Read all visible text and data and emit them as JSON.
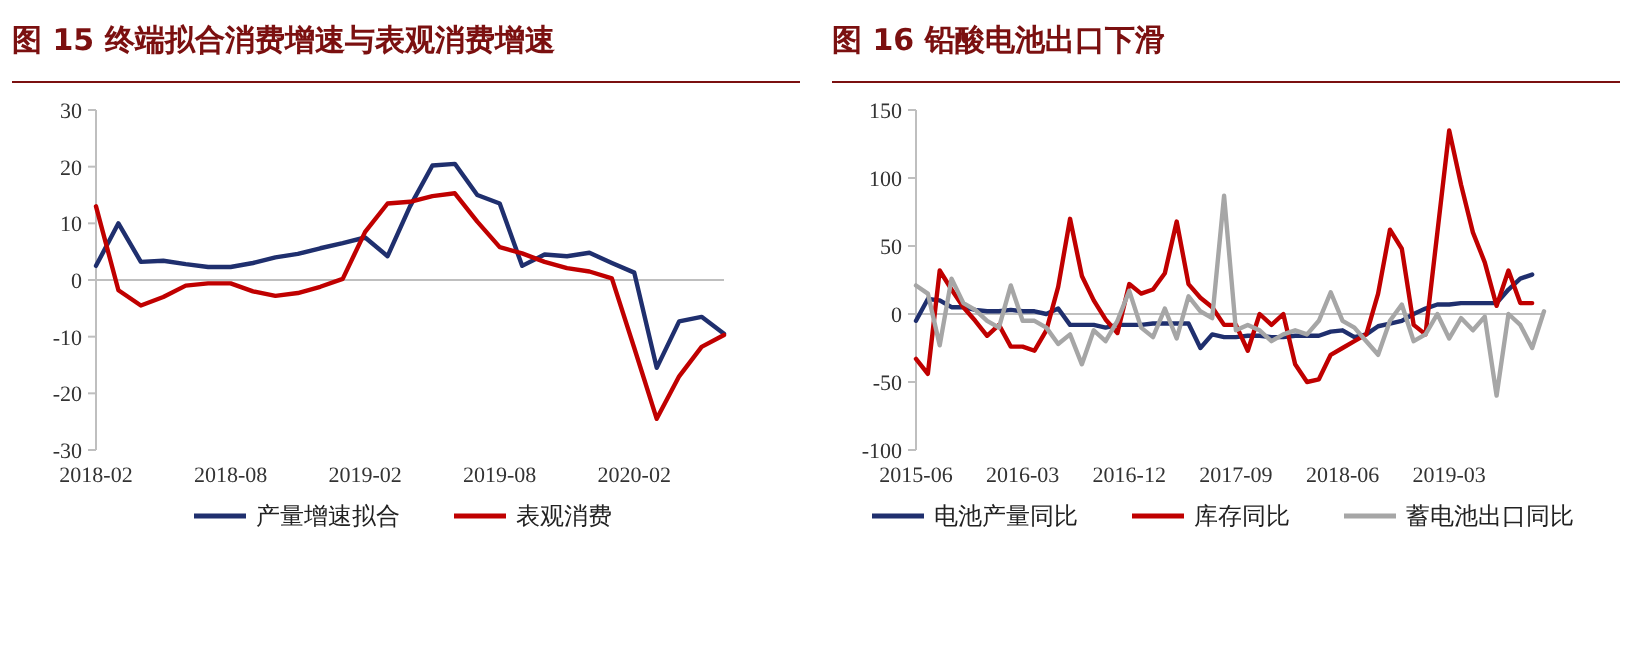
{
  "chart_data": [
    {
      "type": "line",
      "title": "图 15 终端拟合消费增速与表观消费增速",
      "legend": "bottom",
      "grid": false,
      "line_style": "solid",
      "marker": "none",
      "x": [
        "2018-02",
        "2018-03",
        "2018-04",
        "2018-05",
        "2018-06",
        "2018-07",
        "2018-08",
        "2018-09",
        "2018-10",
        "2018-11",
        "2018-12",
        "2019-01",
        "2019-02",
        "2019-03",
        "2019-04",
        "2019-05",
        "2019-06",
        "2019-07",
        "2019-08",
        "2019-09",
        "2019-10",
        "2019-11",
        "2019-12",
        "2020-01",
        "2020-02",
        "2020-03",
        "2020-04",
        "2020-05",
        "2020-06"
      ],
      "xlim": [
        "2018-02",
        "2020-06"
      ],
      "xticks": [
        "2018-02",
        "2018-08",
        "2019-02",
        "2019-08",
        "2020-02"
      ],
      "ylim": [
        -30,
        30
      ],
      "yticks": [
        -30,
        -20,
        -10,
        0,
        10,
        20,
        30
      ],
      "ref_lines": [
        {
          "axis": "y",
          "value": 0,
          "color": "#bfbfbf"
        }
      ],
      "series": [
        {
          "name": "产量增速拟合",
          "color": "#1f2f6e",
          "values": [
            2.5,
            10,
            3.2,
            3.4,
            2.8,
            2.3,
            2.3,
            3,
            4,
            4.6,
            5.6,
            6.5,
            7.5,
            4.2,
            13,
            20.2,
            20.5,
            15,
            13.5,
            2.5,
            4.5,
            4.2,
            4.8,
            3,
            1.3,
            -15.5,
            -7.3,
            -6.5,
            -9.5
          ]
        },
        {
          "name": "表观消费",
          "color": "#c00000",
          "values": [
            13,
            -1.8,
            -4.5,
            -3,
            -1,
            -0.6,
            -0.6,
            -2,
            -2.8,
            -2.3,
            -1.2,
            0.2,
            8.5,
            13.5,
            13.8,
            14.8,
            15.3,
            10.3,
            5.8,
            4.7,
            3.2,
            2.1,
            1.5,
            0.3,
            -12,
            -24.5,
            -17,
            -11.8,
            -9.7
          ]
        }
      ]
    },
    {
      "type": "line",
      "title": "图 16 铅酸电池出口下滑",
      "legend": "bottom",
      "grid": false,
      "line_style": "solid",
      "marker": "none",
      "x": [
        "2015-06",
        "2015-07",
        "2015-08",
        "2015-09",
        "2015-10",
        "2015-11",
        "2015-12",
        "2016-01",
        "2016-02",
        "2016-03",
        "2016-04",
        "2016-05",
        "2016-06",
        "2016-07",
        "2016-08",
        "2016-09",
        "2016-10",
        "2016-11",
        "2016-12",
        "2017-01",
        "2017-02",
        "2017-03",
        "2017-04",
        "2017-05",
        "2017-06",
        "2017-07",
        "2017-08",
        "2017-09",
        "2017-10",
        "2017-11",
        "2017-12",
        "2018-01",
        "2018-02",
        "2018-03",
        "2018-04",
        "2018-05",
        "2018-06",
        "2018-07",
        "2018-08",
        "2018-09",
        "2018-10",
        "2018-11",
        "2018-12",
        "2019-01",
        "2019-02",
        "2019-03",
        "2019-04",
        "2019-05",
        "2019-06",
        "2019-07",
        "2019-08",
        "2019-09",
        "2019-10",
        "2019-11"
      ],
      "xlim": [
        "2015-06",
        "2019-11"
      ],
      "xticks": [
        "2015-06",
        "2016-03",
        "2016-12",
        "2017-09",
        "2018-06",
        "2019-03"
      ],
      "ylim": [
        -100,
        150
      ],
      "yticks": [
        -100,
        -50,
        0,
        50,
        100,
        150
      ],
      "ref_lines": [
        {
          "axis": "y",
          "value": 0,
          "color": "#bfbfbf"
        }
      ],
      "series": [
        {
          "name": "电池产量同比",
          "color": "#1f2f6e",
          "values": [
            -5,
            11,
            10,
            5,
            5,
            3,
            2,
            2,
            3,
            2,
            2,
            0,
            4,
            -8,
            -8,
            -8,
            -10,
            -8,
            -8,
            -8,
            -7,
            -7,
            -7,
            -7,
            -25,
            -15,
            -17,
            -17,
            -16,
            -16,
            -17,
            -17,
            -16,
            -16,
            -16,
            -13,
            -12,
            -17,
            -15,
            -9,
            -7,
            -5,
            0,
            4,
            7,
            7,
            8,
            8,
            8,
            8,
            18,
            26,
            29,
            null
          ]
        },
        {
          "name": "库存同比",
          "color": "#c00000",
          "values": [
            -33,
            -44,
            32,
            18,
            5,
            -5,
            -16,
            -8,
            -24,
            -24,
            -27,
            -12,
            20,
            70,
            28,
            10,
            -4,
            -14,
            22,
            15,
            18,
            30,
            68,
            22,
            12,
            5,
            -8,
            -8,
            -27,
            0,
            -8,
            0,
            -37,
            -50,
            -48,
            -30,
            -25,
            -20,
            -15,
            15,
            62,
            48,
            -8,
            -15,
            60,
            135,
            95,
            60,
            38,
            6,
            32,
            8,
            8,
            null
          ]
        },
        {
          "name": "蓄电池出口同比",
          "color": "#a6a6a6",
          "values": [
            21,
            15,
            -23,
            26,
            8,
            3,
            -5,
            -10,
            21,
            -5,
            -5,
            -10,
            -22,
            -15,
            -37,
            -12,
            -20,
            -5,
            17,
            -10,
            -17,
            4,
            -18,
            13,
            2,
            -3,
            87,
            -12,
            -8,
            -12,
            -20,
            -15,
            -12,
            -15,
            -5,
            16,
            -5,
            -10,
            -20,
            -30,
            -5,
            7,
            -20,
            -15,
            0,
            -18,
            -3,
            -12,
            -2,
            -60,
            0,
            -8,
            -25,
            2
          ]
        }
      ]
    }
  ]
}
